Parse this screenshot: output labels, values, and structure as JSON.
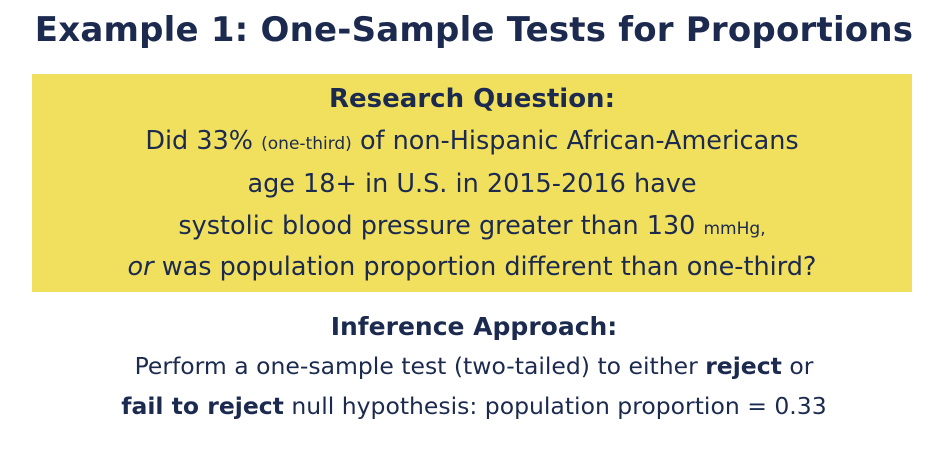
{
  "title": "Example 1: One-Sample Tests for Proportions",
  "research_question": {
    "heading": "Research Question:",
    "line1": {
      "a": "Did 33%",
      "small": "(one-third)",
      "b": "of non-Hispanic African-Americans"
    },
    "line2": "age 18+ in U.S. in 2015-2016 have",
    "line3": {
      "a": "systolic blood pressure greater than 130",
      "small": "mmHg,"
    },
    "line4": {
      "italic": "or",
      "rest": "was population proportion different than one-third?"
    }
  },
  "inference": {
    "heading": "Inference Approach:",
    "line1": {
      "a": "Perform a one-sample test (two-tailed) to either",
      "bold": "reject",
      "b": "or"
    },
    "line2": {
      "bold": "fail to reject",
      "rest": "null hypothesis: population proportion = 0.33"
    }
  },
  "colors": {
    "text": "#1b2a4e",
    "highlight_box": "#f1df5e",
    "background": "#ffffff"
  }
}
